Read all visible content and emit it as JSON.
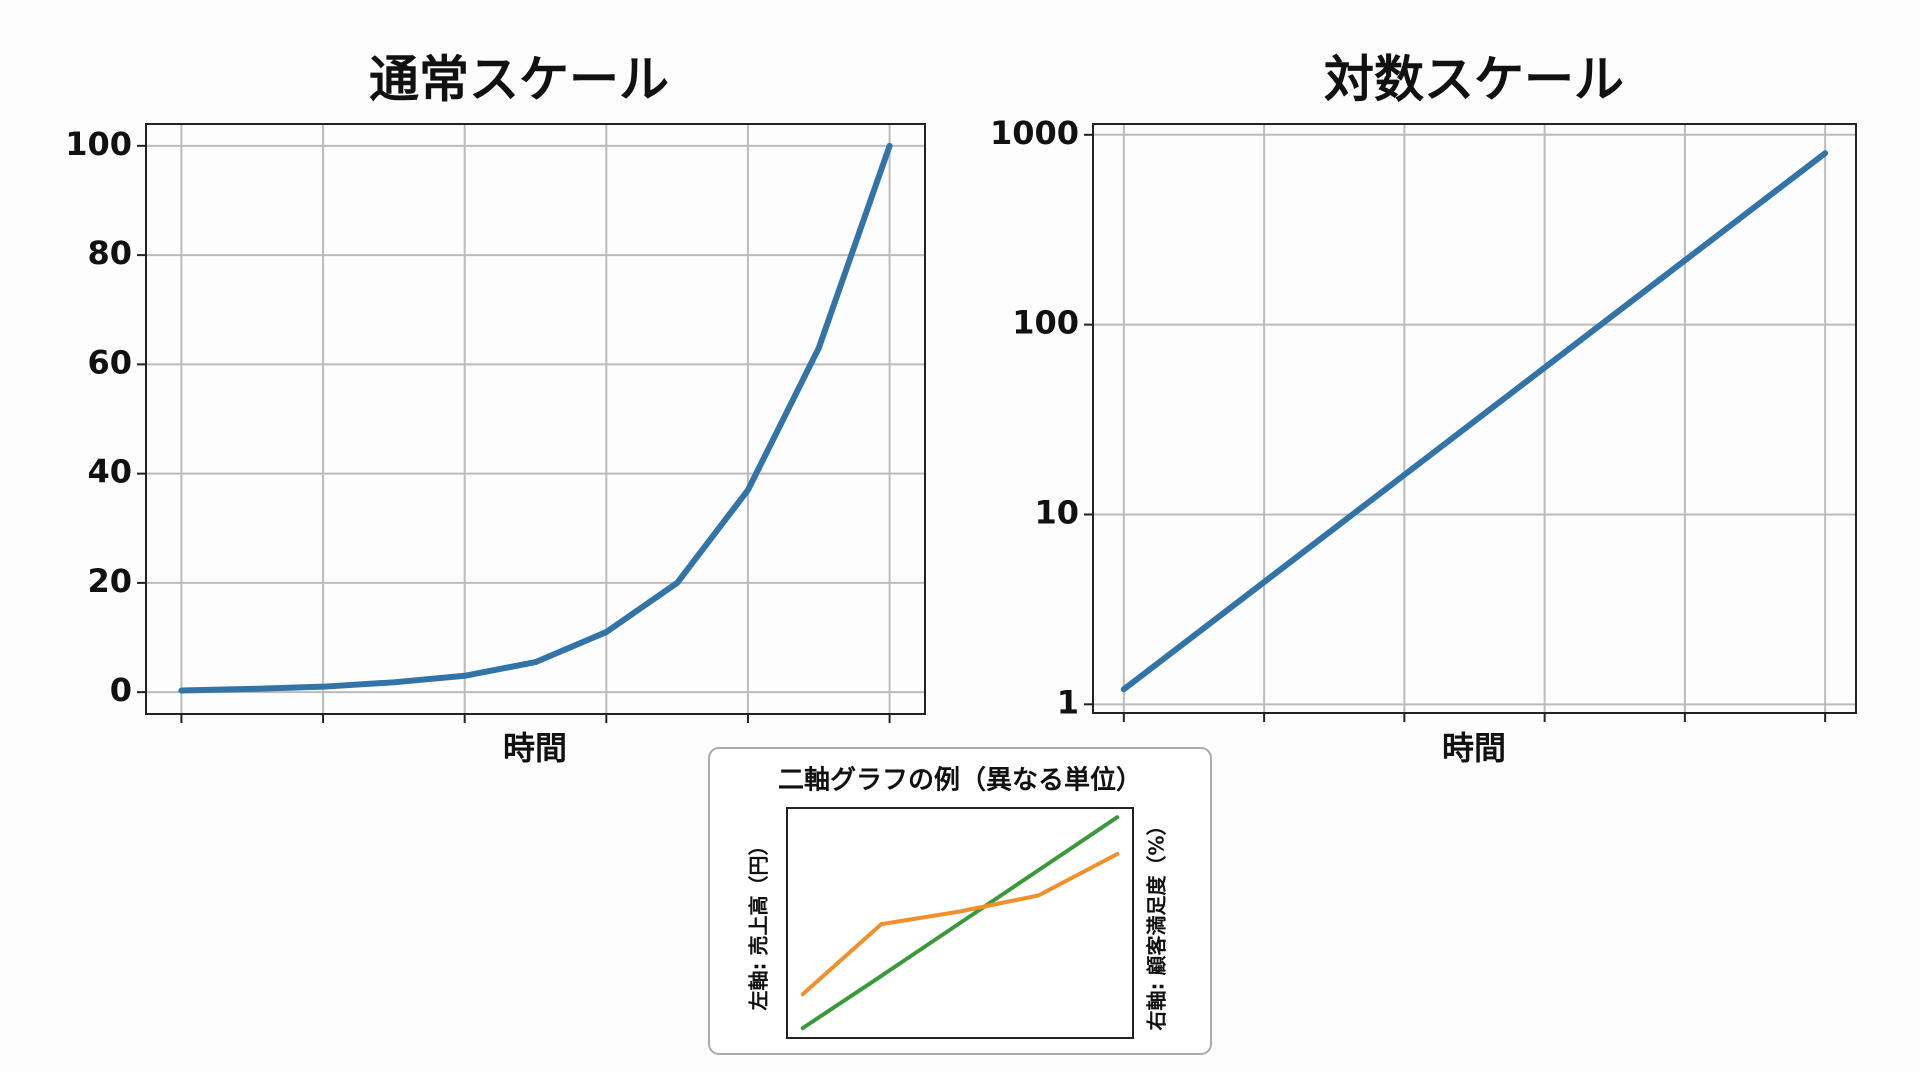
{
  "chart_data": [
    {
      "type": "line",
      "title": "通常スケール",
      "x_label": "時間",
      "x": [
        0,
        0.5,
        1,
        1.5,
        2,
        2.5,
        3,
        3.5,
        4,
        4.5,
        5
      ],
      "series": [
        {
          "color": "#3273a8",
          "values": [
            0.3,
            0.6,
            1.0,
            1.8,
            3,
            5.5,
            11,
            20,
            37,
            63,
            100
          ]
        }
      ],
      "xlim": [
        -0.25,
        5.25
      ],
      "xticks": [
        0,
        1,
        2,
        3,
        4,
        5
      ],
      "ylim": [
        -4,
        104
      ],
      "yticks": [
        0,
        20,
        40,
        60,
        80,
        100
      ],
      "grid": true,
      "yscale": "linear"
    },
    {
      "type": "line",
      "title": "対数スケール",
      "x_label": "時間",
      "x": [
        0,
        5
      ],
      "series": [
        {
          "color": "#3273a8",
          "values": [
            1.2,
            800
          ]
        }
      ],
      "xlim": [
        -0.22,
        5.22
      ],
      "xticks": [
        0,
        1,
        2,
        3,
        4,
        5
      ],
      "ylim": [
        0.9,
        1140
      ],
      "yticks": [
        1,
        10,
        100,
        1000
      ],
      "grid": true,
      "yscale": "log"
    },
    {
      "type": "line",
      "title": "二軸グラフの例（異なる単位）",
      "y_label": "左軸: 売上高（円）",
      "y2_label": "右軸: 顧客満足度（%）",
      "x": [
        0,
        1,
        2,
        3,
        4
      ],
      "series": [
        {
          "color": "#3a9a3a",
          "values": [
            4.3,
            27,
            50,
            73,
            96
          ]
        },
        {
          "color": "#f0902a",
          "axis": "y2",
          "values": [
            19,
            49.5,
            55,
            62,
            80
          ]
        }
      ],
      "xlim": [
        -0.2,
        4.2
      ],
      "ylim": [
        0,
        100
      ],
      "y2lim": [
        0,
        100
      ],
      "grid": false,
      "yscale": "linear"
    }
  ]
}
